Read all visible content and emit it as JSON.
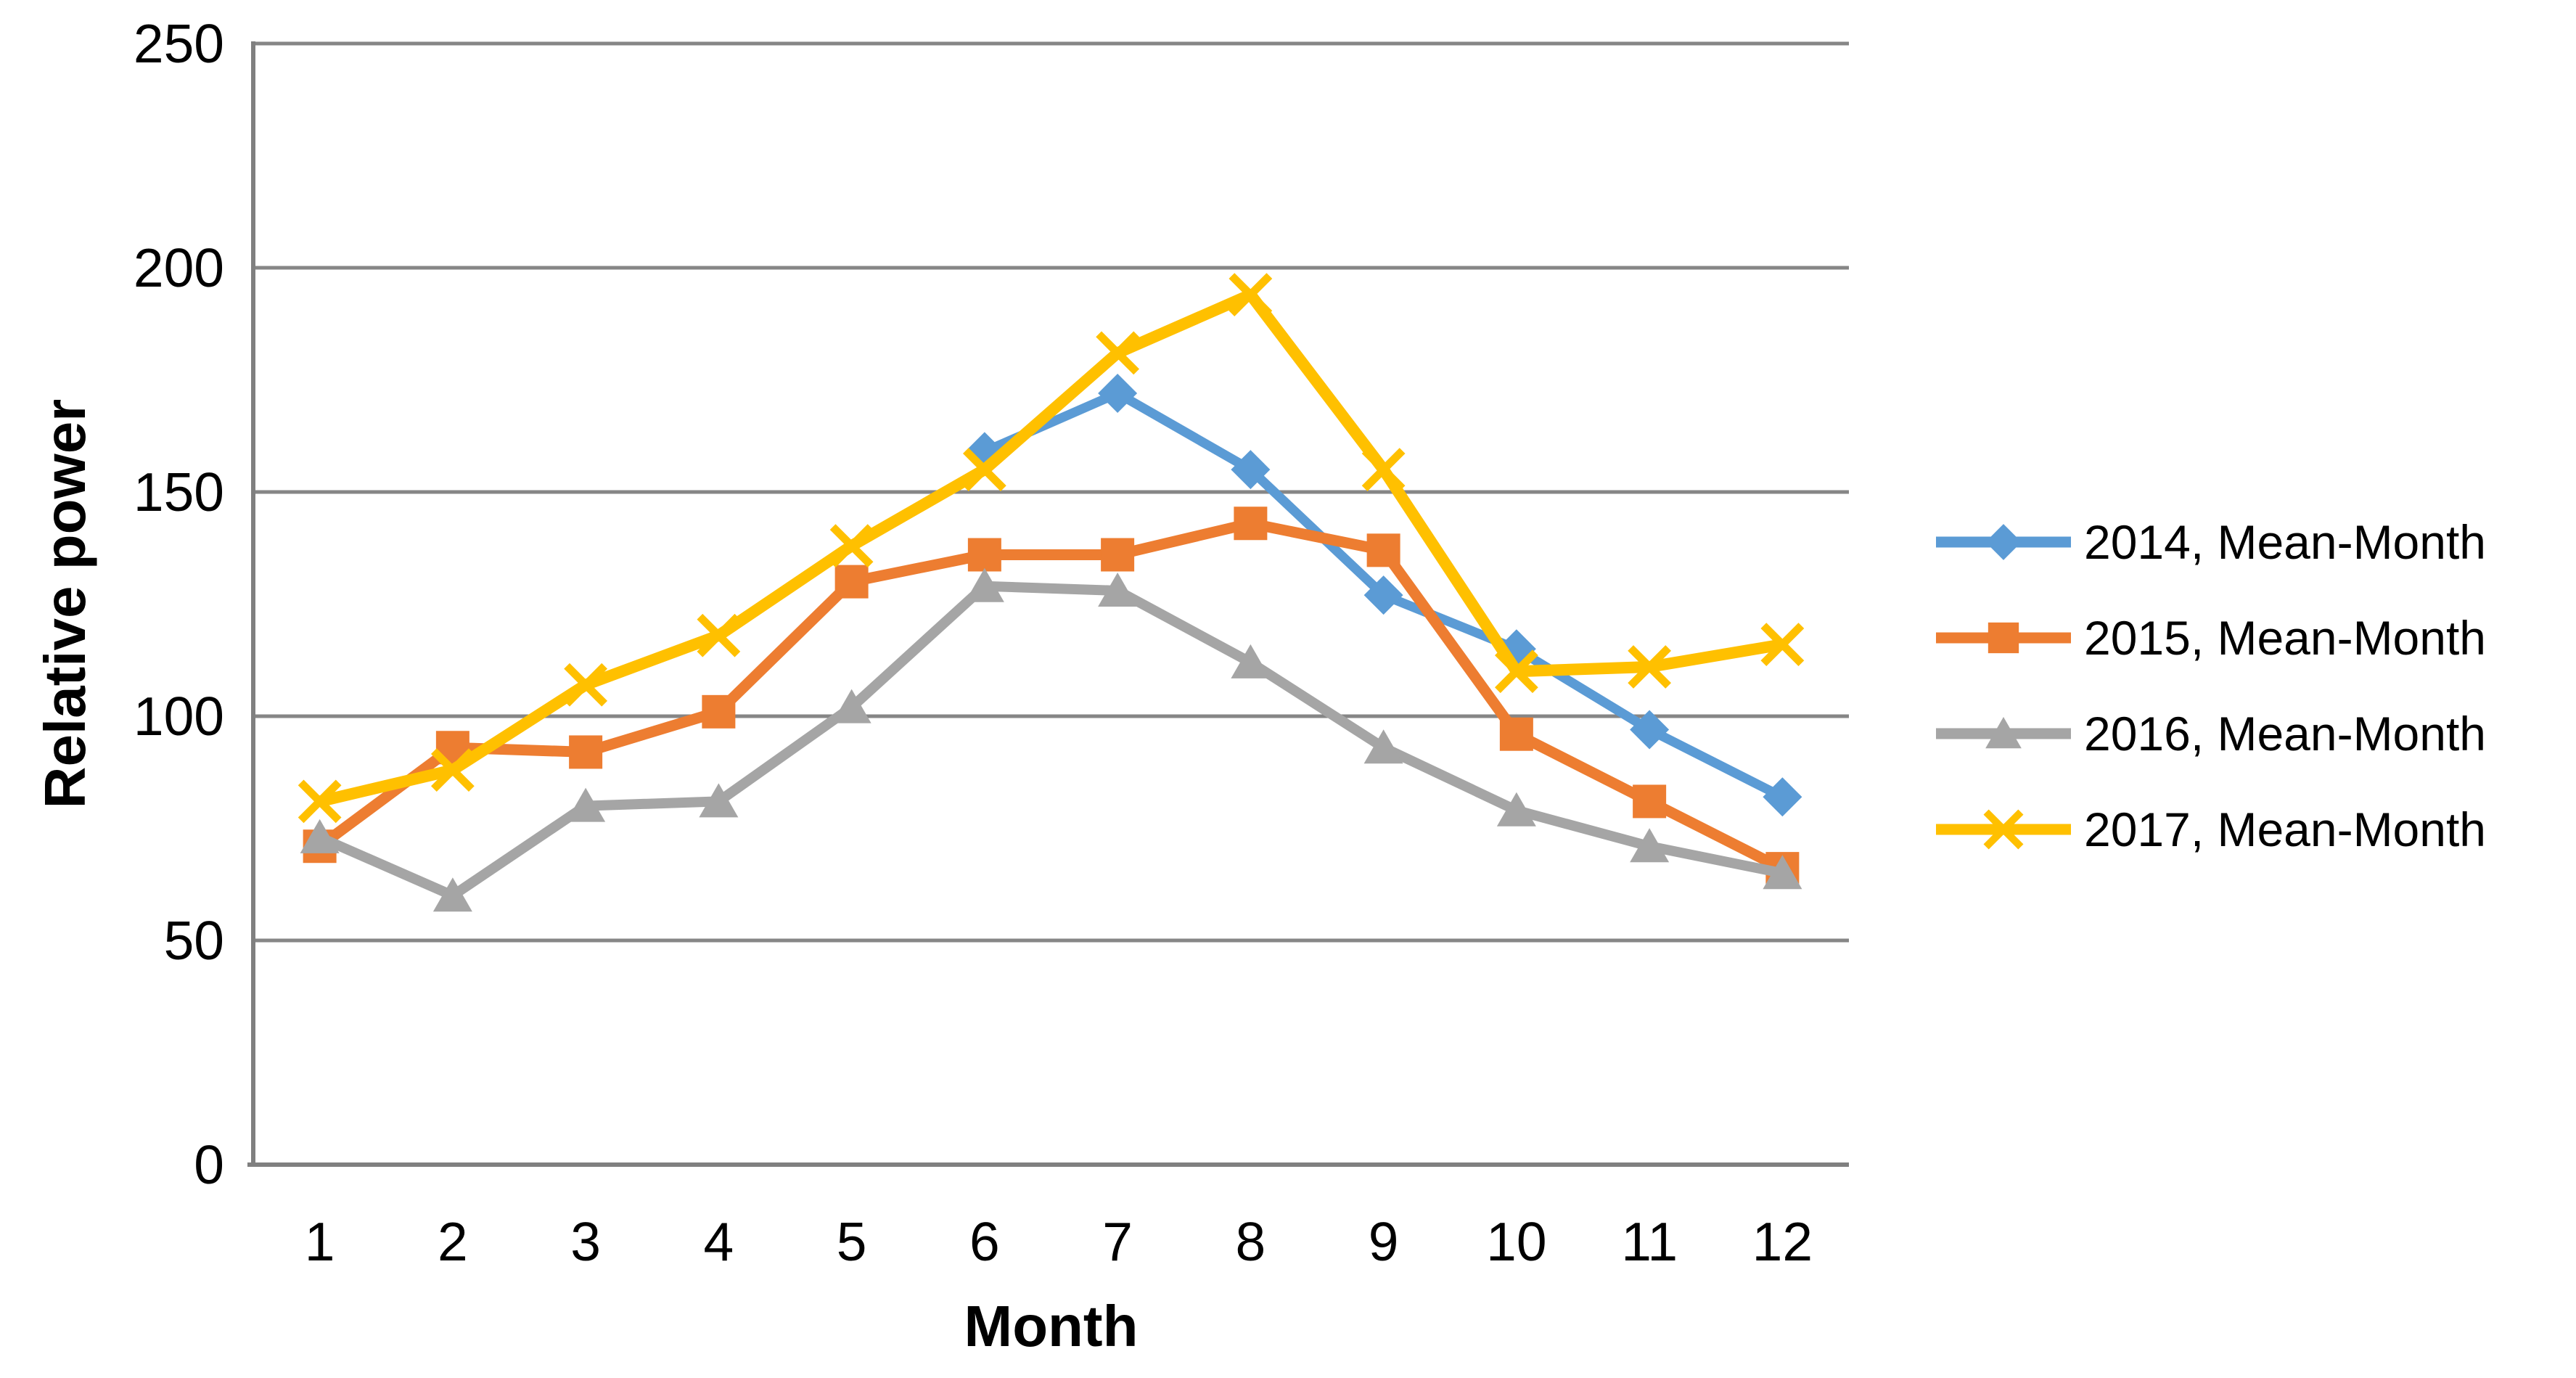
{
  "chart_data": {
    "type": "line",
    "title": "",
    "xlabel": "Month",
    "ylabel": "Relative power",
    "categories": [
      "1",
      "2",
      "3",
      "4",
      "5",
      "6",
      "7",
      "8",
      "9",
      "10",
      "11",
      "12"
    ],
    "ylim": [
      0,
      250
    ],
    "yticks": [
      0,
      50,
      100,
      150,
      200,
      250
    ],
    "grid": "horizontal",
    "legend_position": "right",
    "series": [
      {
        "name": "2014, Mean-Month",
        "color": "#5B9BD5",
        "marker": "diamond",
        "values": [
          null,
          null,
          null,
          null,
          null,
          159,
          172,
          155,
          127,
          115,
          97,
          82
        ]
      },
      {
        "name": "2015, Mean-Month",
        "color": "#ED7D31",
        "marker": "square",
        "values": [
          71,
          93,
          92,
          101,
          130,
          136,
          136,
          143,
          137,
          96,
          81,
          66
        ]
      },
      {
        "name": "2016, Mean-Month",
        "color": "#A5A5A5",
        "marker": "triangle",
        "values": [
          73,
          60,
          80,
          81,
          102,
          129,
          128,
          112,
          93,
          79,
          71,
          65
        ]
      },
      {
        "name": "2017, Mean-Month",
        "color": "#FFC000",
        "marker": "x",
        "values": [
          81,
          88,
          107,
          118,
          138,
          155,
          181,
          194,
          155,
          110,
          111,
          116
        ]
      }
    ]
  },
  "colors": {
    "background": "#FFFFFF",
    "gridline": "#868686",
    "axis": "#808080",
    "text": "#000000"
  }
}
